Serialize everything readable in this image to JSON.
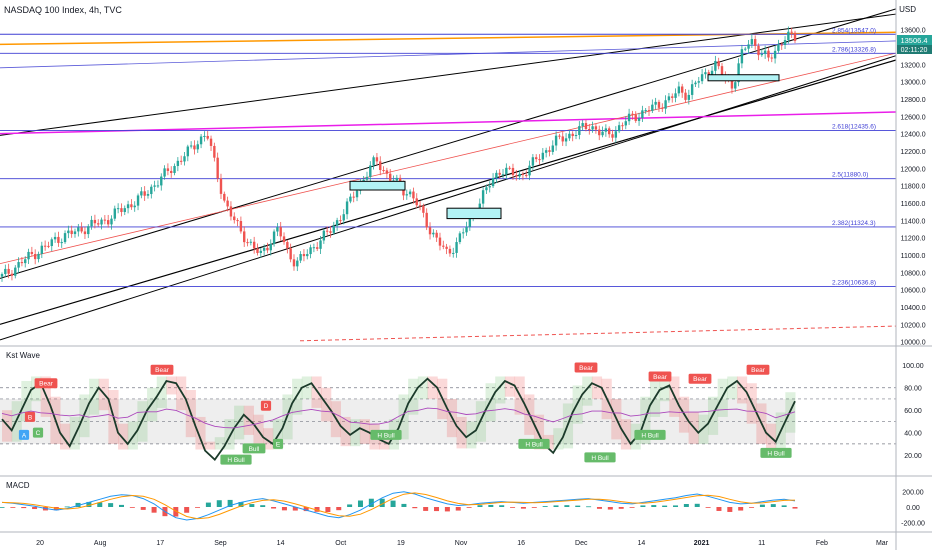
{
  "header": {
    "title": "NASDAQ 100 Index, 4h, TVC",
    "currency": "USD"
  },
  "price_tags": {
    "last_price": "13506.4",
    "countdown": "02:11:20"
  },
  "panes": {
    "oscillator_label": "Kst Wave",
    "macd_label": "MACD"
  },
  "colors": {
    "up_candle": "#26a69a",
    "down_candle": "#ef5350",
    "fib_line": "#3f3fd4",
    "orange_trend": "#ff9800",
    "magenta_trend": "#e91ee9",
    "channel": "#000000",
    "box_fill": "#b2f3f5",
    "last_price_tag": "#26a69a",
    "countdown_tag": "#1f7b73"
  },
  "chart_data": [
    {
      "type": "line",
      "pane": "price",
      "y_axis_ticks": [
        "13600.0",
        "13400.0",
        "13200.0",
        "13000.0",
        "12800.0",
        "12600.0",
        "12400.0",
        "12200.0",
        "12000.0",
        "11800.0",
        "11600.0",
        "11400.0",
        "11200.0",
        "11000.0",
        "10800.0",
        "10600.0",
        "10400.0",
        "10200.0",
        "10000.0"
      ],
      "ylim": [
        9950,
        13850
      ],
      "x_axis_ticks": [
        "20",
        "Aug",
        "17",
        "Sep",
        "14",
        "Oct",
        "19",
        "Nov",
        "16",
        "Dec",
        "14",
        "2021",
        "11",
        "Feb",
        "Mar"
      ],
      "fib_levels": [
        {
          "label": "2.854(13547.0)",
          "value": 13547.0
        },
        {
          "label": "2.786(13326.8)",
          "value": 13326.8
        },
        {
          "label": "2.618(12435.6)",
          "value": 12435.6
        },
        {
          "label": "2.5(11880.0)",
          "value": 11880.0
        },
        {
          "label": "2.382(11324.3)",
          "value": 11324.3
        },
        {
          "label": "2.236(10636.8)",
          "value": 10636.8
        }
      ],
      "close_path": [
        10750,
        10820,
        10900,
        10980,
        11040,
        11100,
        11180,
        11220,
        11260,
        11300,
        11340,
        11380,
        11420,
        11500,
        11560,
        11620,
        11700,
        11800,
        11900,
        12000,
        12100,
        12200,
        12320,
        12400,
        12000,
        11600,
        11400,
        11250,
        11100,
        11000,
        11150,
        11300,
        11050,
        10900,
        11000,
        11100,
        11200,
        11300,
        11450,
        11600,
        11800,
        11950,
        12100,
        11950,
        11850,
        11750,
        11700,
        11500,
        11300,
        11150,
        11000,
        11150,
        11300,
        11500,
        11700,
        11850,
        12000,
        11950,
        11900,
        12000,
        12100,
        12200,
        12300,
        12350,
        12400,
        12450,
        12500,
        12420,
        12380,
        12450,
        12550,
        12600,
        12650,
        12700,
        12750,
        12800,
        12900,
        12850,
        13000,
        13100,
        13200,
        13050,
        12950,
        13300,
        13500,
        13350,
        13250,
        13400,
        13520,
        13506
      ]
    },
    {
      "type": "line",
      "pane": "oscillator",
      "title": "Kst Wave",
      "y_axis_ticks": [
        "100.00",
        "80.00",
        "60.00",
        "40.00",
        "20.00"
      ],
      "ylim": [
        5,
        110
      ],
      "reference_lines": [
        80,
        70,
        50,
        30
      ],
      "signal_labels": [
        "Bear",
        "Bear",
        "Bear",
        "Bear",
        "Bear",
        "Bear",
        "H Bull",
        "H Bull",
        "Bull",
        "H Bull",
        "H Bull",
        "H Bull",
        "H Bull",
        "A",
        "B",
        "C",
        "D",
        "E"
      ],
      "values": [
        52,
        42,
        60,
        78,
        84,
        64,
        40,
        28,
        46,
        66,
        80,
        70,
        40,
        30,
        42,
        60,
        72,
        86,
        84,
        70,
        46,
        24,
        16,
        28,
        44,
        56,
        48,
        36,
        30,
        44,
        66,
        80,
        84,
        72,
        60,
        46,
        38,
        44,
        40,
        34,
        30,
        44,
        66,
        80,
        88,
        80,
        62,
        46,
        36,
        42,
        60,
        76,
        86,
        82,
        66,
        48,
        30,
        22,
        36,
        58,
        74,
        84,
        80,
        62,
        44,
        30,
        40,
        64,
        78,
        82,
        64,
        50,
        40,
        48,
        64,
        80,
        86,
        76,
        58,
        40,
        32,
        50,
        68
      ]
    },
    {
      "type": "line",
      "pane": "macd",
      "title": "MACD",
      "y_axis_ticks": [
        "200.00",
        "0.00",
        "-200.00"
      ],
      "ylim": [
        -300,
        300
      ],
      "values": [
        60,
        50,
        30,
        10,
        -20,
        -40,
        -20,
        20,
        60,
        100,
        140,
        160,
        150,
        110,
        40,
        -60,
        -140,
        -170,
        -150,
        -100,
        -40,
        20,
        60,
        90,
        110,
        80,
        40,
        0,
        -40,
        -80,
        -120,
        -140,
        -100,
        -40,
        40,
        120,
        180,
        200,
        170,
        120,
        80,
        40,
        20,
        30,
        50,
        60,
        70,
        60,
        50,
        60,
        70,
        80,
        90,
        100,
        110,
        90,
        70,
        50,
        40,
        60,
        80,
        100,
        120,
        150,
        170,
        140,
        100,
        60,
        40,
        50,
        70,
        90,
        100,
        80
      ]
    }
  ]
}
